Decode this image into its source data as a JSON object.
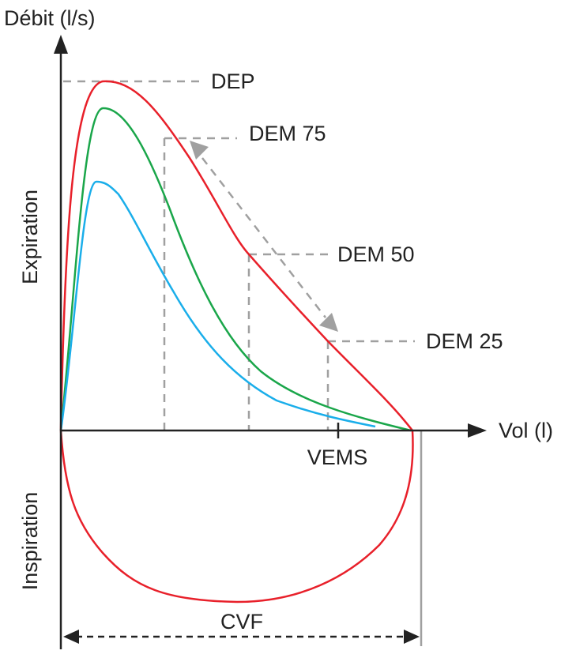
{
  "axes": {
    "y_label": "Débit (l/s)",
    "x_label": "Vol (l)",
    "upper_region_label": "Expiration",
    "lower_region_label": "Inspiration"
  },
  "markers": {
    "dep": "DEP",
    "dem75": "DEM 75",
    "dem50": "DEM 50",
    "dem25": "DEM 25",
    "vems": "VEMS",
    "cvf": "CVF"
  },
  "colors": {
    "curve_normal": "#e8202a",
    "curve_middle": "#1aa64a",
    "curve_low": "#1aaeea",
    "axis": "#222222",
    "guides": "#a0a0a0"
  }
}
